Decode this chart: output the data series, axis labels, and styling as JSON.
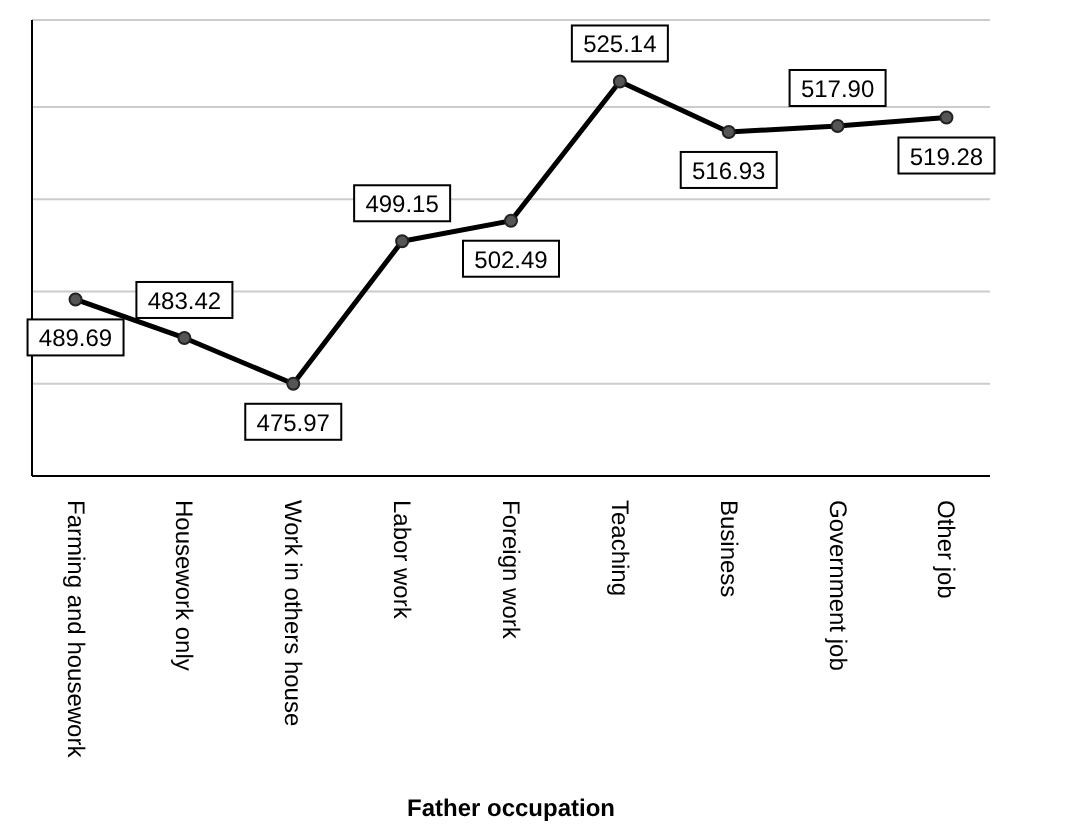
{
  "chart_data": {
    "type": "line",
    "xlabel": "Father occupation",
    "categories": [
      "Farming and housework",
      "Housework only",
      "Work in others house",
      "Labor work",
      "Foreign work",
      "Teaching",
      "Business",
      "Government job",
      "Other job"
    ],
    "series": [
      {
        "color": "#000000",
        "values": [
          489.69,
          483.42,
          475.97,
          499.15,
          502.49,
          525.14,
          516.93,
          517.9,
          519.28
        ],
        "value_labels": [
          "489.69",
          "483.42",
          "475.97",
          "499.15",
          "502.49",
          "525.14",
          "516.93",
          "517.90",
          "519.28"
        ]
      }
    ],
    "tick_labels": "x",
    "grid": "y",
    "marker": "circle",
    "line_style": "solid"
  }
}
